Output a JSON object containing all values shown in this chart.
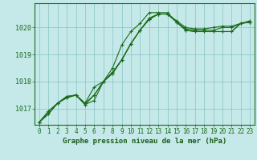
{
  "background_color": "#c5e8e8",
  "plot_bg_color": "#c5e8e8",
  "grid_color": "#88c4c4",
  "line_color": "#1a6b1a",
  "title": "Graphe pression niveau de la mer (hPa)",
  "xlabel_color": "#1a5c1a",
  "hours": [
    0,
    1,
    2,
    3,
    4,
    5,
    6,
    7,
    8,
    9,
    10,
    11,
    12,
    13,
    14,
    15,
    16,
    17,
    18,
    19,
    20,
    21,
    22,
    23
  ],
  "series": [
    [
      1016.5,
      1016.8,
      1017.2,
      1017.4,
      1017.5,
      1017.15,
      1017.3,
      1018.0,
      1018.5,
      1019.35,
      1019.85,
      1020.15,
      1020.55,
      1020.55,
      1020.55,
      1020.2,
      1019.9,
      1019.85,
      1019.85,
      1019.85,
      1019.85,
      1019.85,
      1020.15,
      1020.2
    ],
    [
      1016.5,
      1016.8,
      1017.2,
      1017.4,
      1017.5,
      1017.15,
      1017.5,
      1018.0,
      1018.3,
      1018.8,
      1019.4,
      1019.9,
      1020.3,
      1020.5,
      1020.5,
      1020.2,
      1019.9,
      1019.85,
      1019.85,
      1019.85,
      1019.85,
      1019.85,
      1020.15,
      1020.2
    ],
    [
      1016.5,
      1016.9,
      1017.2,
      1017.45,
      1017.5,
      1017.2,
      1017.5,
      1018.0,
      1018.3,
      1018.8,
      1019.4,
      1019.9,
      1020.3,
      1020.5,
      1020.5,
      1020.2,
      1019.95,
      1019.9,
      1019.9,
      1019.9,
      1020.0,
      1020.0,
      1020.15,
      1020.2
    ],
    [
      1016.5,
      1016.9,
      1017.2,
      1017.45,
      1017.5,
      1017.2,
      1017.8,
      1018.0,
      1018.35,
      1018.8,
      1019.4,
      1019.9,
      1020.35,
      1020.5,
      1020.5,
      1020.25,
      1020.0,
      1019.95,
      1019.95,
      1020.0,
      1020.05,
      1020.05,
      1020.15,
      1020.25
    ]
  ],
  "ylim": [
    1016.4,
    1020.9
  ],
  "yticks": [
    1017,
    1018,
    1019,
    1020
  ],
  "xlim": [
    -0.5,
    23.5
  ],
  "xticks": [
    0,
    1,
    2,
    3,
    4,
    5,
    6,
    7,
    8,
    9,
    10,
    11,
    12,
    13,
    14,
    15,
    16,
    17,
    18,
    19,
    20,
    21,
    22,
    23
  ],
  "marker": "+",
  "markersize": 3.5,
  "linewidth": 0.8,
  "tick_fontsize": 5.5,
  "label_fontsize": 6.5
}
